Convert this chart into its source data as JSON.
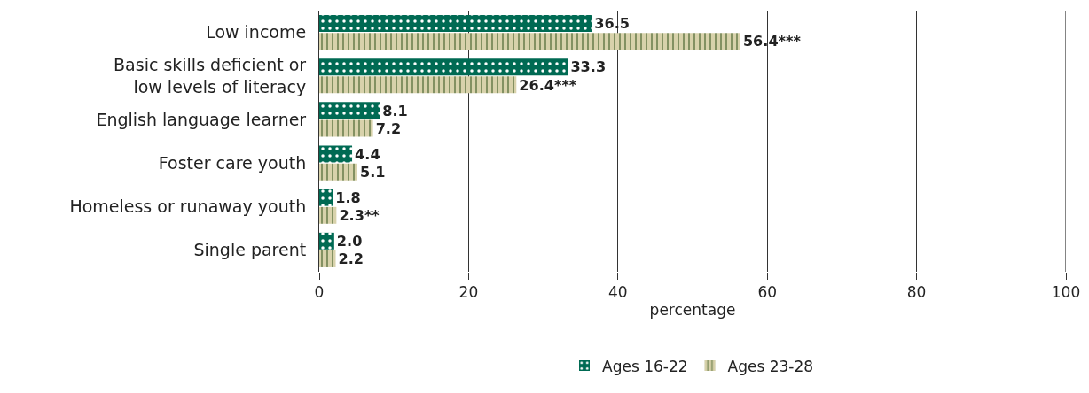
{
  "chart_data": {
    "type": "bar",
    "orientation": "horizontal",
    "categories": [
      "Low income",
      "Basic skills deficient or low levels of literacy",
      "English language learner",
      "Foster care youth",
      "Homeless or runaway youth",
      "Single parent"
    ],
    "series": [
      {
        "name": "Ages 16-22",
        "color": "#006a53",
        "values": [
          36.5,
          33.3,
          8.1,
          4.4,
          1.8,
          2.0
        ],
        "value_labels": [
          "36.5",
          "33.3",
          "8.1",
          "4.4",
          "1.8",
          "2.0"
        ]
      },
      {
        "name": "Ages 23-28",
        "color": "#d8d2ab",
        "values": [
          56.4,
          26.4,
          7.2,
          5.1,
          2.3,
          2.2
        ],
        "value_labels": [
          "56.4***",
          "26.4***",
          "7.2",
          "5.1",
          "2.3**",
          "2.2"
        ]
      }
    ],
    "xlabel": "percentage",
    "xlim": [
      0,
      100
    ],
    "xticks": [
      0,
      20,
      40,
      60,
      80,
      100
    ],
    "grid": "x",
    "legend": "bottom"
  }
}
